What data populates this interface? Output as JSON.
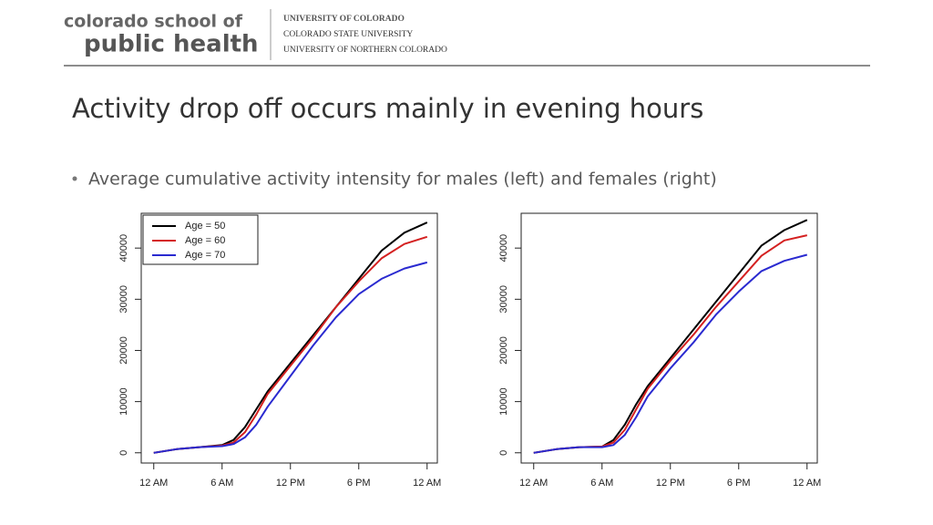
{
  "header": {
    "logo_line1": "colorado school of",
    "logo_line2": "public health",
    "partners": [
      "UNIVERSITY OF COLORADO",
      "COLORADO STATE UNIVERSITY",
      "UNIVERSITY OF NORTHERN COLORADO"
    ]
  },
  "slide_title": "Activity drop off occurs mainly in evening hours",
  "bullet": "Average cumulative activity intensity for males (left) and females (right)",
  "chart_data": [
    {
      "type": "line",
      "legend": "top-left",
      "x": [
        0,
        2,
        4,
        6,
        7,
        8,
        9,
        10,
        12,
        14,
        16,
        18,
        20,
        22,
        24
      ],
      "xlim": [
        -1.1,
        24.9
      ],
      "ylim": [
        -2000,
        46800
      ],
      "xticks": [
        {
          "value": 0,
          "label": "12 AM"
        },
        {
          "value": 6,
          "label": "6 AM"
        },
        {
          "value": 12,
          "label": "12 PM"
        },
        {
          "value": 18,
          "label": "6 PM"
        },
        {
          "value": 24,
          "label": "12 AM"
        }
      ],
      "yticks": [
        0,
        10000,
        20000,
        30000,
        40000
      ],
      "series": [
        {
          "name": "Age = 50",
          "color": "#000000",
          "values": [
            0,
            700,
            1100,
            1500,
            2500,
            5000,
            8500,
            12000,
            17500,
            23000,
            28500,
            34000,
            39500,
            43000,
            45000
          ]
        },
        {
          "name": "Age = 60",
          "color": "#d42020",
          "values": [
            0,
            700,
            1100,
            1400,
            2000,
            4000,
            7500,
            11500,
            17000,
            22500,
            28500,
            33500,
            38000,
            40800,
            42200
          ]
        },
        {
          "name": "Age = 70",
          "color": "#2a2ad0",
          "values": [
            0,
            700,
            1100,
            1300,
            1700,
            3000,
            5500,
            9000,
            15000,
            21000,
            26500,
            31000,
            34000,
            36000,
            37200
          ]
        }
      ]
    },
    {
      "type": "line",
      "legend": false,
      "x": [
        0,
        2,
        4,
        6,
        7,
        8,
        9,
        10,
        12,
        14,
        16,
        18,
        20,
        22,
        24
      ],
      "xlim": [
        -1.1,
        24.9
      ],
      "ylim": [
        -2000,
        46800
      ],
      "xticks": [
        {
          "value": 0,
          "label": "12 AM"
        },
        {
          "value": 6,
          "label": "6 AM"
        },
        {
          "value": 12,
          "label": "12 PM"
        },
        {
          "value": 18,
          "label": "6 PM"
        },
        {
          "value": 24,
          "label": "12 AM"
        }
      ],
      "yticks": [
        0,
        10000,
        20000,
        30000,
        40000
      ],
      "series": [
        {
          "color": "#000000",
          "values": [
            0,
            700,
            1100,
            1200,
            2500,
            5500,
            9500,
            13000,
            18500,
            24000,
            29500,
            35000,
            40500,
            43500,
            45500
          ]
        },
        {
          "color": "#d42020",
          "values": [
            0,
            700,
            1100,
            1200,
            2000,
            4500,
            8500,
            12500,
            18000,
            23000,
            28500,
            33500,
            38500,
            41500,
            42500
          ]
        },
        {
          "color": "#2a2ad0",
          "values": [
            0,
            700,
            1100,
            1100,
            1500,
            3500,
            7000,
            11000,
            16500,
            21500,
            27000,
            31500,
            35500,
            37500,
            38700
          ]
        }
      ]
    }
  ]
}
